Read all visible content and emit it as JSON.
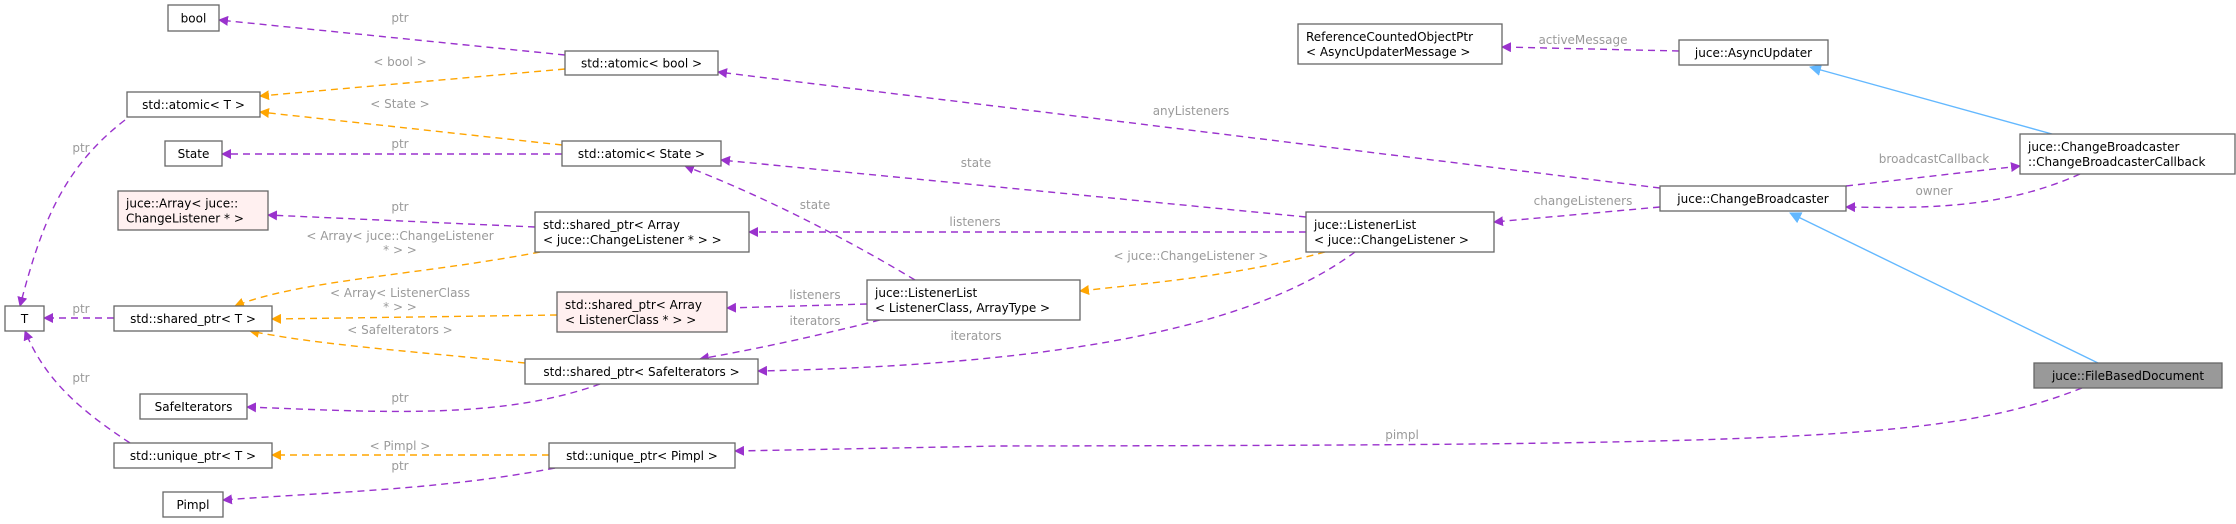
{
  "colors": {
    "usage_edge": "#9a32cd",
    "template_edge": "#ffa500",
    "inheritance_edge": "#63b8ff",
    "node_border": "#666666",
    "undocumented_border": "#ff0000",
    "undocumented_fill": "#fff0f0",
    "focus_fill": "#999999"
  },
  "nodes": [
    {
      "id": "bool",
      "lines": [
        "bool"
      ],
      "style": "normal"
    },
    {
      "id": "atomic_bool",
      "lines": [
        "std::atomic< bool >"
      ],
      "style": "normal"
    },
    {
      "id": "atomic_T",
      "lines": [
        "std::atomic< T >"
      ],
      "style": "normal"
    },
    {
      "id": "State",
      "lines": [
        "State"
      ],
      "style": "normal"
    },
    {
      "id": "atomic_State",
      "lines": [
        "std::atomic< State >"
      ],
      "style": "normal"
    },
    {
      "id": "juce_Array",
      "lines": [
        "juce::Array< juce::",
        "ChangeListener * >"
      ],
      "style": "undocumented"
    },
    {
      "id": "sp_Array_CL",
      "lines": [
        "std::shared_ptr< Array",
        "< juce::ChangeListener * > >"
      ],
      "style": "normal"
    },
    {
      "id": "T",
      "lines": [
        "T"
      ],
      "style": "normal"
    },
    {
      "id": "sp_T",
      "lines": [
        "std::shared_ptr< T >"
      ],
      "style": "normal"
    },
    {
      "id": "sp_Array_LC",
      "lines": [
        "std::shared_ptr< Array",
        "< ListenerClass * > >"
      ],
      "style": "undocumented"
    },
    {
      "id": "sp_SafeIt",
      "lines": [
        "std::shared_ptr< SafeIterators >"
      ],
      "style": "normal"
    },
    {
      "id": "SafeIterators",
      "lines": [
        "SafeIterators"
      ],
      "style": "normal"
    },
    {
      "id": "up_T",
      "lines": [
        "std::unique_ptr< T >"
      ],
      "style": "normal"
    },
    {
      "id": "up_Pimpl",
      "lines": [
        "std::unique_ptr< Pimpl >"
      ],
      "style": "normal"
    },
    {
      "id": "Pimpl",
      "lines": [
        "Pimpl"
      ],
      "style": "normal"
    },
    {
      "id": "RefPtr",
      "lines": [
        "ReferenceCountedObjectPtr",
        "< AsyncUpdaterMessage >"
      ],
      "style": "normal"
    },
    {
      "id": "LL_CL",
      "lines": [
        "juce::ListenerList",
        "< juce::ChangeListener >"
      ],
      "style": "normal"
    },
    {
      "id": "LL_LC",
      "lines": [
        "juce::ListenerList",
        "< ListenerClass, ArrayType >"
      ],
      "style": "normal"
    },
    {
      "id": "AsyncUpdater",
      "lines": [
        "juce::AsyncUpdater"
      ],
      "style": "normal"
    },
    {
      "id": "CBCallback",
      "lines": [
        "juce::ChangeBroadcaster",
        "::ChangeBroadcasterCallback"
      ],
      "style": "normal"
    },
    {
      "id": "ChangeBroadcaster",
      "lines": [
        "juce::ChangeBroadcaster"
      ],
      "style": "normal"
    },
    {
      "id": "FileBasedDocument",
      "lines": [
        "juce::FileBasedDocument"
      ],
      "style": "focus"
    }
  ],
  "edges": [
    {
      "from": "atomic_bool",
      "to": "bool",
      "kind": "usage",
      "label": [
        "ptr"
      ]
    },
    {
      "from": "atomic_bool",
      "to": "atomic_T",
      "kind": "template",
      "label": [
        "< bool >"
      ]
    },
    {
      "from": "atomic_State",
      "to": "atomic_T",
      "kind": "template",
      "label": [
        "< State >"
      ]
    },
    {
      "from": "atomic_State",
      "to": "State",
      "kind": "usage",
      "label": [
        "ptr"
      ]
    },
    {
      "from": "sp_Array_CL",
      "to": "juce_Array",
      "kind": "usage",
      "label": [
        "ptr"
      ]
    },
    {
      "from": "sp_Array_CL",
      "to": "sp_T",
      "kind": "template",
      "label": [
        "< Array< juce::ChangeListener",
        "* > >"
      ]
    },
    {
      "from": "sp_Array_LC",
      "to": "sp_T",
      "kind": "template",
      "label": [
        "< Array< ListenerClass",
        "* > >"
      ]
    },
    {
      "from": "sp_SafeIt",
      "to": "sp_T",
      "kind": "template",
      "label": [
        "< SafeIterators >"
      ]
    },
    {
      "from": "sp_SafeIt",
      "to": "SafeIterators",
      "kind": "usage",
      "label": [
        "ptr"
      ]
    },
    {
      "from": "sp_T",
      "to": "T",
      "kind": "usage",
      "label": [
        "ptr"
      ]
    },
    {
      "from": "atomic_T",
      "to": "T",
      "kind": "usage",
      "label": [
        "ptr"
      ]
    },
    {
      "from": "up_T",
      "to": "T",
      "kind": "usage",
      "label": [
        "ptr"
      ]
    },
    {
      "from": "up_Pimpl",
      "to": "up_T",
      "kind": "template",
      "label": [
        "< Pimpl >"
      ]
    },
    {
      "from": "up_Pimpl",
      "to": "Pimpl",
      "kind": "usage",
      "label": [
        "ptr"
      ]
    },
    {
      "from": "LL_LC",
      "to": "atomic_State",
      "kind": "usage",
      "label": [
        "state"
      ]
    },
    {
      "from": "LL_LC",
      "to": "sp_Array_LC",
      "kind": "usage",
      "label": [
        "listeners"
      ]
    },
    {
      "from": "LL_LC",
      "to": "sp_SafeIt",
      "kind": "usage",
      "label": [
        "iterators"
      ]
    },
    {
      "from": "LL_CL",
      "to": "atomic_State",
      "kind": "usage",
      "label": [
        "state"
      ]
    },
    {
      "from": "LL_CL",
      "to": "sp_Array_CL",
      "kind": "usage",
      "label": [
        "listeners"
      ]
    },
    {
      "from": "LL_CL",
      "to": "LL_LC",
      "kind": "template",
      "label": [
        "< juce::ChangeListener >"
      ]
    },
    {
      "from": "LL_CL",
      "to": "sp_SafeIt",
      "kind": "usage",
      "label": [
        "iterators"
      ]
    },
    {
      "from": "ChangeBroadcaster",
      "to": "atomic_bool",
      "kind": "usage",
      "label": [
        "anyListeners"
      ]
    },
    {
      "from": "ChangeBroadcaster",
      "to": "LL_CL",
      "kind": "usage",
      "label": [
        "changeListeners"
      ]
    },
    {
      "from": "ChangeBroadcaster",
      "to": "CBCallback",
      "kind": "usage",
      "label": [
        "broadcastCallback"
      ]
    },
    {
      "from": "CBCallback",
      "to": "ChangeBroadcaster",
      "kind": "usage",
      "label": [
        "owner"
      ]
    },
    {
      "from": "CBCallback",
      "to": "AsyncUpdater",
      "kind": "inheritance",
      "label": []
    },
    {
      "from": "FileBasedDocument",
      "to": "ChangeBroadcaster",
      "kind": "inheritance",
      "label": []
    },
    {
      "from": "AsyncUpdater",
      "to": "RefPtr",
      "kind": "usage",
      "label": [
        "activeMessage"
      ]
    },
    {
      "from": "FileBasedDocument",
      "to": "up_Pimpl",
      "kind": "usage",
      "label": [
        "pimpl"
      ]
    }
  ]
}
